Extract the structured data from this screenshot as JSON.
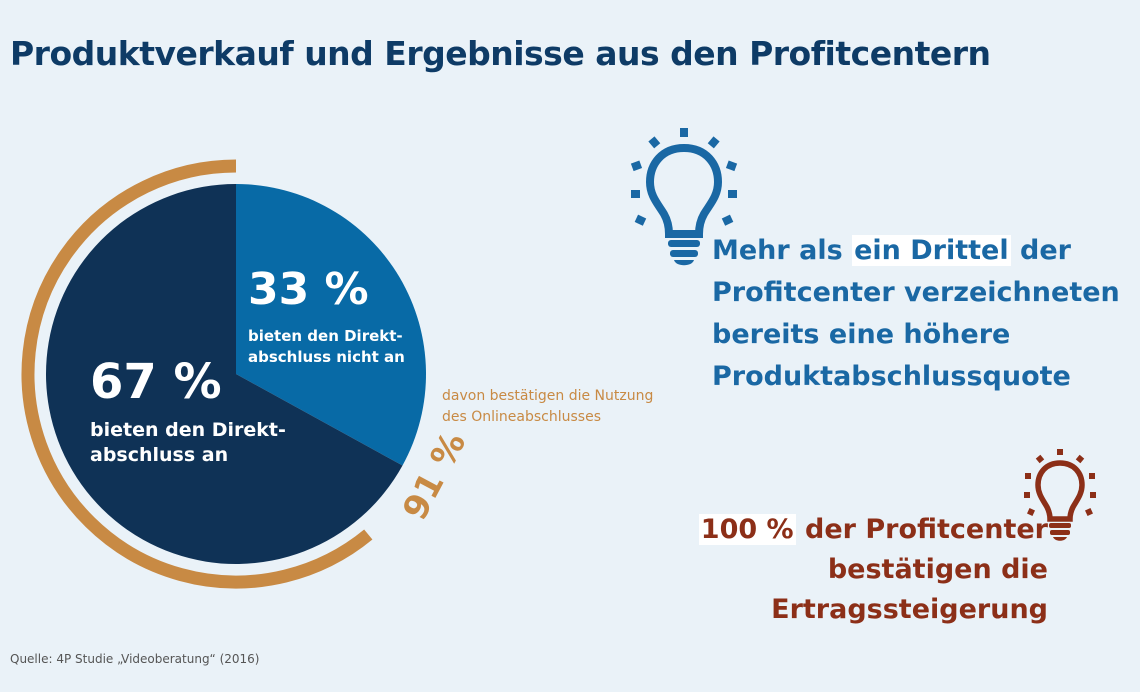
{
  "title": "Produktverkauf und Ergebnisse aus den Profitcentern",
  "colors": {
    "background": "#eaf2f8",
    "dark_navy": "#0f3256",
    "medium_blue": "#086aa6",
    "ring_orange": "#c88a44",
    "title_blue": "#0e3b66",
    "stat_blue": "#1a68a4",
    "stat_red": "#8c2f18"
  },
  "chart_data": {
    "type": "pie",
    "slices": [
      {
        "value": 33,
        "label": "33 %",
        "text": "bieten den Direkt- abschluss nicht an",
        "lines": [
          "bieten den Direkt-",
          "abschluss nicht an"
        ],
        "color": "#086aa6"
      },
      {
        "value": 67,
        "label": "67 %",
        "text": "bieten den Direkt- abschluss an",
        "lines": [
          "bieten den Direkt-",
          "abschluss an"
        ],
        "color": "#0f3256"
      }
    ],
    "ring": {
      "value": 91,
      "label": "91 %",
      "of_slice": "67 %",
      "lines": [
        "davon bestätigen die Nutzung",
        "des Onlineabschlusses"
      ],
      "color": "#c88a44"
    }
  },
  "icons": {
    "bulb_blue": "lightbulb-icon",
    "bulb_red": "lightbulb-icon"
  },
  "stat_blue": {
    "pre": "Mehr als ",
    "highlight": "ein Drittel",
    "post_line1": " der",
    "lines": [
      "Profitcenter verzeichneten",
      "bereits eine höhere",
      "Produktabschlussquote"
    ]
  },
  "stat_red": {
    "highlight": "100 %",
    "post_line1": " der Profitcenter",
    "line2": "bestätigen die Ertragssteigerung"
  },
  "source": "Quelle: 4P Studie „Videoberatung“ (2016)"
}
